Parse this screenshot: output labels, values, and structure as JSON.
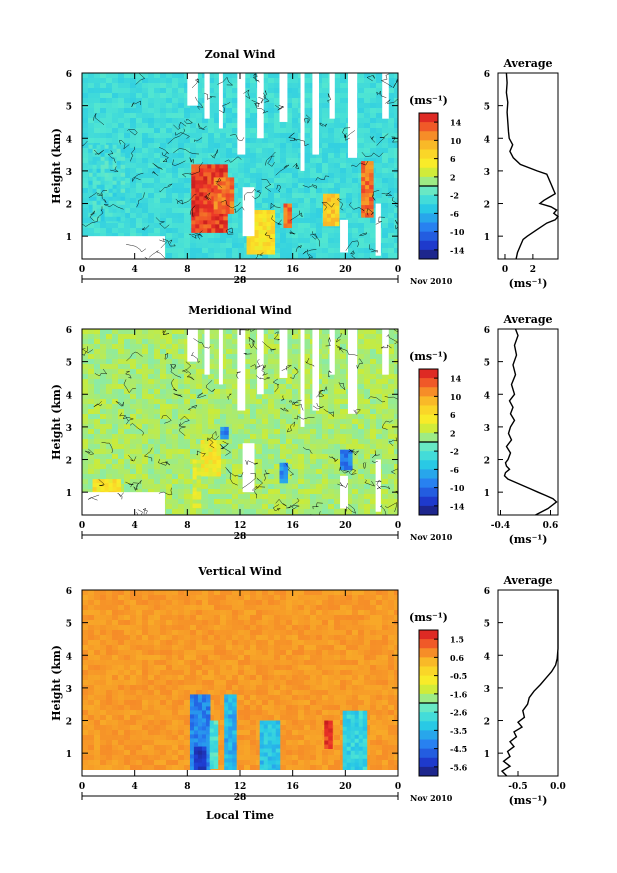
{
  "chart_data": [
    {
      "type": "heatmap",
      "title": "Zonal Wind",
      "ylabel": "Height (km)",
      "x_ticks": [
        "0",
        "4",
        "8",
        "12",
        "16",
        "20",
        "0"
      ],
      "y_ticks": [
        "1",
        "2",
        "3",
        "4",
        "5",
        "6"
      ],
      "xlim": [
        0,
        24
      ],
      "ylim": [
        0.3,
        6.0
      ],
      "date_day": "28",
      "date_label": "Nov 2010",
      "colorbar": {
        "unit": "(ms⁻¹)",
        "ticks": [
          "14",
          "10",
          "6",
          "2",
          "-2",
          "-6",
          "-10",
          "-14"
        ],
        "range": [
          -16,
          16
        ]
      },
      "features": [
        {
          "x": [
            8.3,
            10.8
          ],
          "y": [
            1.2,
            3.2
          ],
          "value": 14
        },
        {
          "x": [
            10.0,
            11.3
          ],
          "y": [
            1.8,
            2.8
          ],
          "value": 12
        },
        {
          "x": [
            15.3,
            15.8
          ],
          "y": [
            1.3,
            2.0
          ],
          "value": 12
        },
        {
          "x": [
            18.3,
            19.3
          ],
          "y": [
            1.4,
            2.3
          ],
          "value": 8
        },
        {
          "x": [
            21.2,
            22.0
          ],
          "y": [
            1.6,
            3.3
          ],
          "value": 12
        },
        {
          "x": [
            12.5,
            14.5
          ],
          "y": [
            0.5,
            1.8
          ],
          "value": 6
        },
        {
          "x": [
            0.5,
            3.2
          ],
          "y": [
            1.5,
            3.8
          ],
          "value": -3
        }
      ],
      "average": {
        "title": "Average",
        "xlabel": "(ms⁻¹)",
        "x_ticks": [
          "0",
          "2"
        ],
        "xlim": [
          -0.5,
          3.8
        ],
        "y": [
          0.3,
          0.5,
          0.7,
          0.9,
          1.0,
          1.2,
          1.4,
          1.5,
          1.6,
          1.7,
          1.8,
          1.9,
          2.0,
          2.1,
          2.2,
          2.3,
          2.4,
          2.5,
          2.6,
          2.7,
          2.8,
          2.9,
          3.0,
          3.2,
          3.4,
          3.6,
          3.8,
          4.0,
          4.2,
          4.5,
          4.8,
          5.1,
          5.4,
          5.7,
          6.0
        ],
        "x": [
          0.8,
          0.9,
          1.1,
          1.3,
          1.6,
          2.3,
          3.0,
          3.6,
          3.8,
          3.5,
          3.7,
          3.3,
          2.5,
          2.8,
          3.2,
          3.6,
          3.5,
          3.4,
          3.3,
          3.2,
          3.1,
          3.0,
          2.3,
          1.1,
          0.6,
          0.35,
          0.55,
          0.3,
          0.25,
          0.2,
          0.15,
          0.2,
          0.1,
          0.15,
          0.1
        ]
      }
    },
    {
      "type": "heatmap",
      "title": "Meridional Wind",
      "ylabel": "Height (km)",
      "x_ticks": [
        "0",
        "4",
        "8",
        "12",
        "16",
        "20",
        "0"
      ],
      "y_ticks": [
        "1",
        "2",
        "3",
        "4",
        "5",
        "6"
      ],
      "xlim": [
        0,
        24
      ],
      "ylim": [
        0.3,
        6.0
      ],
      "date_day": "28",
      "date_label": "Nov 2010",
      "colorbar": {
        "unit": "(ms⁻¹)",
        "ticks": [
          "14",
          "10",
          "6",
          "2",
          "-2",
          "-6",
          "-10",
          "-14"
        ],
        "range": [
          -16,
          16
        ]
      },
      "features": [
        {
          "x": [
            9.0,
            10.3
          ],
          "y": [
            1.5,
            2.6
          ],
          "value": 5
        },
        {
          "x": [
            10.5,
            11.0
          ],
          "y": [
            2.7,
            3.0
          ],
          "value": -9
        },
        {
          "x": [
            15.0,
            15.4
          ],
          "y": [
            1.3,
            1.9
          ],
          "value": -8
        },
        {
          "x": [
            19.6,
            20.4
          ],
          "y": [
            1.7,
            2.3
          ],
          "value": -9
        },
        {
          "x": [
            0.8,
            2.8
          ],
          "y": [
            0.6,
            1.4
          ],
          "value": 6
        },
        {
          "x": [
            8.4,
            9.0
          ],
          "y": [
            0.6,
            2.0
          ],
          "value": 3
        }
      ],
      "average": {
        "title": "Average",
        "xlabel": "(ms⁻¹)",
        "x_ticks": [
          "-0.4",
          "0.6"
        ],
        "xlim": [
          -0.45,
          0.75
        ],
        "y": [
          0.3,
          0.5,
          0.7,
          0.8,
          0.9,
          1.0,
          1.1,
          1.2,
          1.3,
          1.4,
          1.5,
          1.6,
          1.7,
          1.8,
          1.9,
          2.0,
          2.2,
          2.4,
          2.6,
          2.8,
          3.0,
          3.2,
          3.4,
          3.6,
          3.8,
          4.0,
          4.3,
          4.6,
          4.9,
          5.2,
          5.5,
          5.8,
          6.0
        ],
        "x": [
          0.3,
          0.55,
          0.72,
          0.65,
          0.5,
          0.35,
          0.2,
          0.05,
          -0.1,
          -0.25,
          -0.32,
          -0.3,
          -0.22,
          -0.28,
          -0.3,
          -0.25,
          -0.2,
          -0.28,
          -0.18,
          -0.24,
          -0.2,
          -0.12,
          -0.2,
          -0.15,
          -0.22,
          -0.12,
          -0.18,
          -0.1,
          -0.15,
          -0.08,
          -0.12,
          -0.05,
          -0.1
        ]
      }
    },
    {
      "type": "heatmap",
      "title": "Vertical Wind",
      "ylabel": "Height (km)",
      "xlabel": "Local Time",
      "x_ticks": [
        "0",
        "4",
        "8",
        "12",
        "16",
        "20",
        "0"
      ],
      "y_ticks": [
        "1",
        "2",
        "3",
        "4",
        "5",
        "6"
      ],
      "xlim": [
        0,
        24
      ],
      "ylim": [
        0.3,
        6.0
      ],
      "date_day": "28",
      "date_label": "Nov 2010",
      "colorbar": {
        "unit": "(ms⁻¹)",
        "ticks": [
          "1.5",
          "0.6",
          "-0.5",
          "-1.6",
          "-2.6",
          "-3.5",
          "-4.5",
          "-5.6"
        ],
        "range": [
          -6.0,
          2.0
        ]
      },
      "features": [
        {
          "x": [
            8.2,
            9.6
          ],
          "y": [
            0.4,
            2.8
          ],
          "value": -4.2
        },
        {
          "x": [
            8.5,
            9.4
          ],
          "y": [
            0.5,
            1.2
          ],
          "value": -5.4
        },
        {
          "x": [
            9.7,
            10.3
          ],
          "y": [
            0.6,
            2.0
          ],
          "value": -2.6
        },
        {
          "x": [
            10.8,
            11.6
          ],
          "y": [
            0.5,
            2.8
          ],
          "value": -3.6
        },
        {
          "x": [
            13.5,
            14.8
          ],
          "y": [
            0.5,
            2.0
          ],
          "value": -3.3
        },
        {
          "x": [
            18.4,
            18.9
          ],
          "y": [
            1.2,
            2.0
          ],
          "value": 1.6
        },
        {
          "x": [
            19.8,
            21.5
          ],
          "y": [
            0.5,
            2.3
          ],
          "value": -3.0
        }
      ],
      "average": {
        "title": "Average",
        "xlabel": "(ms⁻¹)",
        "x_ticks": [
          "-0.5",
          "0.0"
        ],
        "xlim": [
          -0.75,
          0.0
        ],
        "y": [
          0.3,
          0.45,
          0.6,
          0.75,
          0.9,
          1.05,
          1.2,
          1.35,
          1.5,
          1.65,
          1.8,
          1.95,
          2.1,
          2.3,
          2.5,
          2.7,
          2.9,
          3.1,
          3.3,
          3.5,
          3.7,
          3.9,
          4.2,
          4.6,
          5.0,
          5.4,
          5.8,
          6.0
        ],
        "x": [
          -0.64,
          -0.7,
          -0.6,
          -0.68,
          -0.6,
          -0.63,
          -0.55,
          -0.6,
          -0.52,
          -0.55,
          -0.45,
          -0.5,
          -0.42,
          -0.44,
          -0.38,
          -0.36,
          -0.3,
          -0.22,
          -0.15,
          -0.08,
          -0.03,
          -0.01,
          0.0,
          0.0,
          0.0,
          0.0,
          0.0,
          0.0
        ]
      }
    }
  ]
}
